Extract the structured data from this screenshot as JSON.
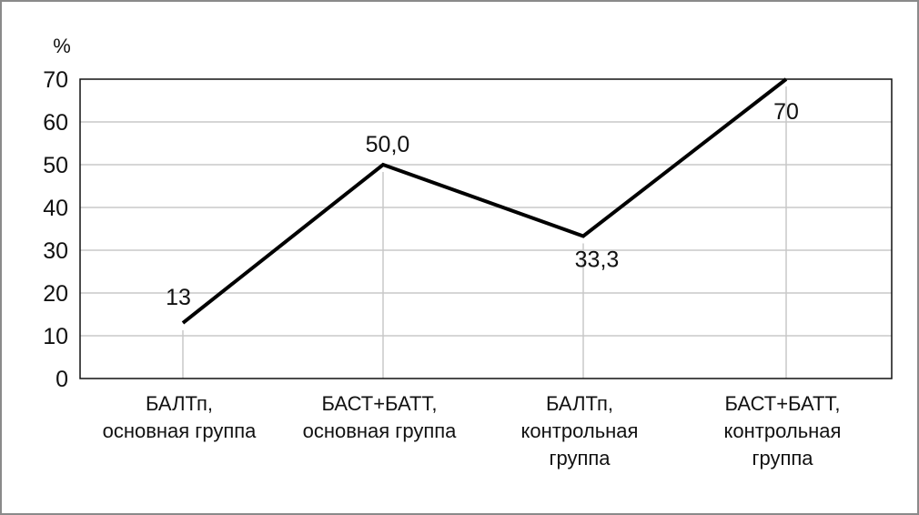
{
  "chart_data": {
    "type": "line",
    "ylabel": "%",
    "ylim": [
      0,
      70
    ],
    "yticks": [
      "0",
      "10",
      "20",
      "30",
      "40",
      "50",
      "60",
      "70"
    ],
    "grid": true,
    "categories": [
      [
        "БАЛТп,",
        "основная группа"
      ],
      [
        "БАСТ+БАТТ,",
        "основная группа"
      ],
      [
        "БАЛТп,",
        "контрольная",
        "группа"
      ],
      [
        "БАСТ+БАТТ,",
        "контрольная",
        "группа"
      ]
    ],
    "values": [
      13,
      50.0,
      33.3,
      70
    ],
    "data_labels": [
      "13",
      "50,0",
      "33,3",
      "70"
    ],
    "line_color": "#000000"
  }
}
